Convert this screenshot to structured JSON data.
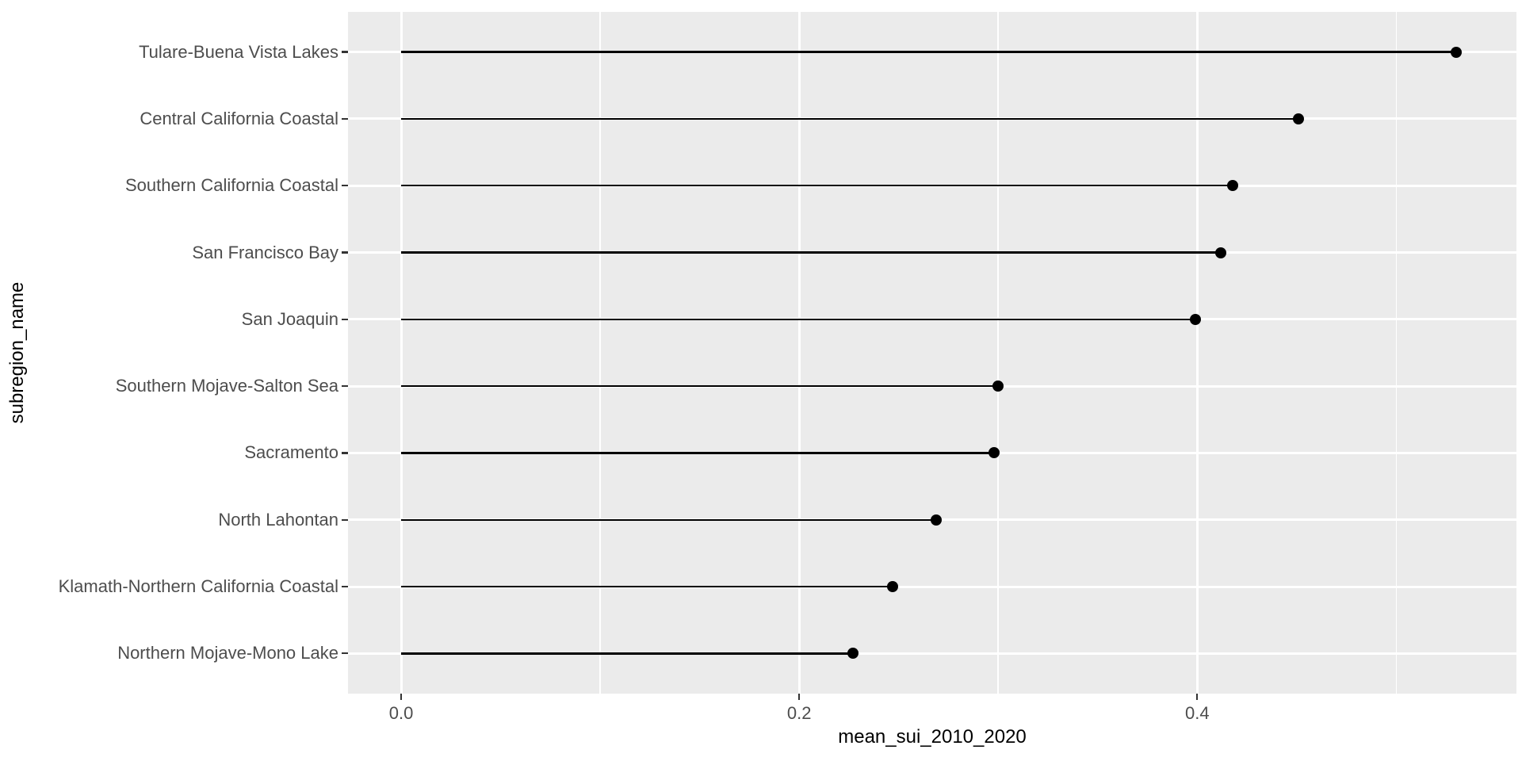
{
  "chart_data": {
    "type": "scatter",
    "subtype": "lollipop",
    "orientation": "horizontal",
    "title": "",
    "xlabel": "mean_sui_2010_2020",
    "ylabel": "subregion_name",
    "categories": [
      "Tulare-Buena Vista Lakes",
      "Central California Coastal",
      "Southern California Coastal",
      "San Francisco Bay",
      "San Joaquin",
      "Southern Mojave-Salton Sea",
      "Sacramento",
      "North Lahontan",
      "Klamath-Northern California Coastal",
      "Northern Mojave-Mono Lake"
    ],
    "values": [
      0.53,
      0.451,
      0.418,
      0.412,
      0.399,
      0.3,
      0.298,
      0.269,
      0.247,
      0.227
    ],
    "segment_baseline": 0.0,
    "x_ticks": [
      0.0,
      0.2,
      0.4
    ],
    "x_tick_labels": [
      "0.0",
      "0.2",
      "0.4"
    ],
    "x_minor_ticks": [
      0.1,
      0.3,
      0.5
    ],
    "xlim": [
      -0.0267,
      0.5604
    ],
    "grid": "major-and-minor-white",
    "legend": false,
    "colors": {
      "page_bg": "#FFFFFF",
      "panel_bg": "#EBEBEB",
      "gridline": "#FFFFFF",
      "segment": "#000000",
      "point": "#000000",
      "axis_text": "#4D4D4D",
      "axis_title": "#000000",
      "tick_mark": "#333333"
    }
  }
}
